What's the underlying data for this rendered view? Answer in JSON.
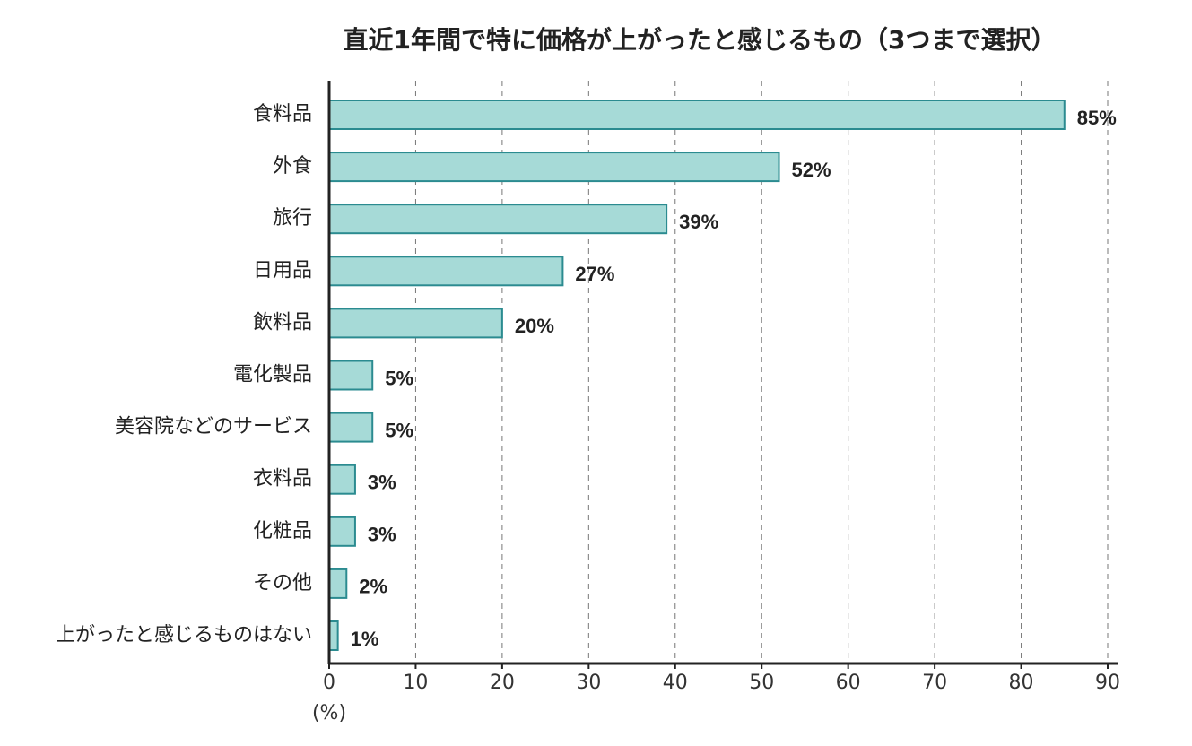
{
  "chart_data": {
    "type": "bar",
    "title": "直近1年間で特に価格が上がったと感じるもの（3つまで選択）",
    "categories": [
      "食料品",
      "外食",
      "旅行",
      "日用品",
      "飲料品",
      "電化製品",
      "美容院などのサービス",
      "衣料品",
      "化粧品",
      "その他",
      "上がったと感じるものはない"
    ],
    "values": [
      85,
      52,
      39,
      27,
      20,
      5,
      5,
      3,
      3,
      2,
      1
    ],
    "value_labels": [
      "85%",
      "52%",
      "39%",
      "27%",
      "20%",
      "5%",
      "5%",
      "3%",
      "3%",
      "2%",
      "1%"
    ],
    "xlabel": "(%)",
    "xlim": [
      0,
      90
    ],
    "xticks": [
      0,
      10,
      20,
      30,
      40,
      50,
      60,
      70,
      80,
      90
    ],
    "color": "#a6dad7",
    "grid": true
  }
}
